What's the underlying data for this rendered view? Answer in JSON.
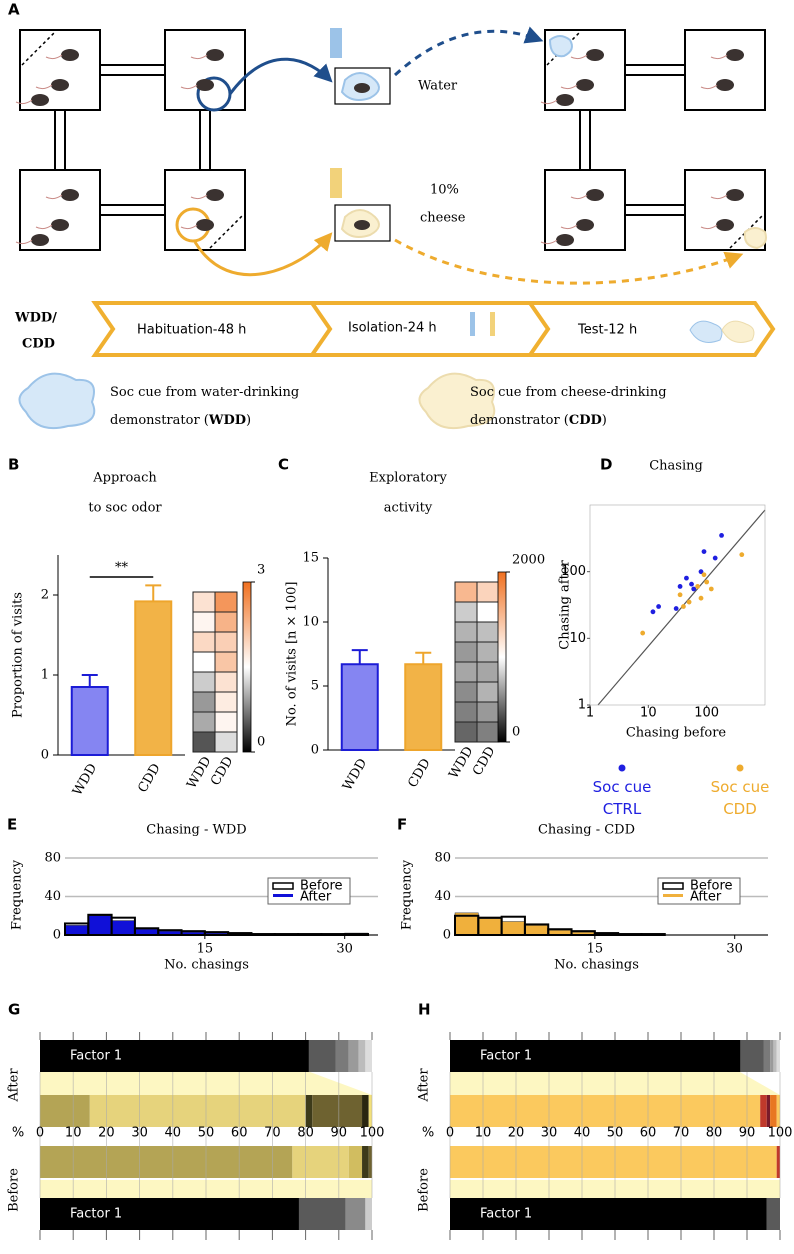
{
  "diagram": {
    "panel": "A",
    "water": "Water",
    "cheese_lines": [
      "10%",
      "cheese"
    ],
    "timeline": {
      "group_lines": [
        "WDD/",
        "CDD"
      ],
      "stages": [
        "Habituation-48 h",
        "Isolation-24 h",
        "Test-12 h"
      ]
    },
    "legend": [
      {
        "lines": [
          [
            "Soc cue from water-drinking"
          ],
          [
            "demonstrator (",
            "WDD",
            ")"
          ]
        ]
      },
      {
        "lines": [
          [
            "Soc cue from cheese-drinking"
          ],
          [
            "demonstrator (",
            "CDD",
            ")"
          ]
        ]
      }
    ]
  },
  "chart_data": [
    {
      "type": "bar",
      "panel": "B",
      "title_lines": [
        "Approach",
        "to soc odor"
      ],
      "ylabel": "Proportion of visits",
      "categories": [
        "WDD",
        "CDD"
      ],
      "values": [
        0.85,
        1.92
      ],
      "errors": [
        0.15,
        0.2
      ],
      "colors": [
        "#8585f2",
        "#f2b347"
      ],
      "edgecolors": [
        "#1c1cd6",
        "#eea52c"
      ],
      "ylim": [
        0,
        2.5
      ],
      "yticks": [
        0,
        1,
        2
      ],
      "annotation": "**",
      "heatmap": {
        "categories": [
          "WDD",
          "CDD"
        ],
        "values": [
          [
            1.8,
            1.6,
            1.9,
            1.5,
            1.2,
            0.9,
            1.0,
            0.5
          ],
          [
            2.6,
            2.3,
            2.0,
            2.1,
            1.8,
            1.7,
            1.6,
            1.3
          ]
        ],
        "clim": [
          0,
          3
        ],
        "cticks": [
          0,
          3
        ]
      }
    },
    {
      "type": "bar",
      "panel": "C",
      "title_lines": [
        "Exploratory",
        "activity"
      ],
      "ylabel": "No. of visits [n × 100]",
      "categories": [
        "WDD",
        "CDD"
      ],
      "values": [
        6.7,
        6.7
      ],
      "errors": [
        1.1,
        0.9
      ],
      "colors": [
        "#8585f2",
        "#f2b347"
      ],
      "edgecolors": [
        "#1c1cd6",
        "#eea52c"
      ],
      "ylim": [
        0,
        15
      ],
      "yticks": [
        0,
        5,
        10,
        15
      ],
      "heatmap": {
        "categories": [
          "WDD",
          "CDD"
        ],
        "values": [
          [
            1500,
            800,
            700,
            600,
            650,
            550,
            500,
            400
          ],
          [
            1300,
            1000,
            750,
            700,
            650,
            700,
            600,
            500
          ]
        ],
        "clim": [
          0,
          2000
        ],
        "cticks": [
          0,
          2000
        ]
      }
    },
    {
      "type": "scatter",
      "panel": "D",
      "title": "Chasing",
      "xlabel": "Chasing before",
      "ylabel": "Chasing after",
      "log_scale": true,
      "xlim": [
        1,
        1000
      ],
      "ylim": [
        1,
        1000
      ],
      "xticks": [
        1,
        10,
        100
      ],
      "yticks": [
        1,
        10,
        100
      ],
      "series": [
        {
          "name": "Soc cue CTRL",
          "color": "#1f1fe0",
          "x": [
            12,
            15,
            30,
            35,
            45,
            55,
            60,
            80,
            90,
            140,
            180
          ],
          "y": [
            25,
            30,
            28,
            60,
            80,
            65,
            55,
            100,
            200,
            160,
            350
          ]
        },
        {
          "name": "Soc cue CDD",
          "color": "#eeab2e",
          "x": [
            8,
            35,
            40,
            50,
            70,
            80,
            90,
            100,
            120,
            400
          ],
          "y": [
            12,
            45,
            30,
            35,
            60,
            40,
            90,
            70,
            55,
            180
          ]
        }
      ]
    },
    {
      "type": "histogram",
      "panel": "E",
      "title": "Chasing - WDD",
      "xlabel": "No. chasings",
      "ylabel": "Frequency",
      "bins": [
        0,
        2.5,
        5,
        7.5,
        10,
        12.5,
        15,
        17.5,
        20,
        22.5,
        25,
        27.5,
        30,
        32.5
      ],
      "xlim": [
        0,
        32.5
      ],
      "ylim": [
        0,
        80
      ],
      "xticks": [
        15,
        30
      ],
      "yticks": [
        0,
        40,
        80
      ],
      "grid": true,
      "series": [
        {
          "name": "Before",
          "color": "#000000",
          "values": [
            12,
            21,
            18,
            7,
            5,
            4,
            3,
            2,
            1,
            1,
            1,
            1,
            1
          ]
        },
        {
          "name": "After",
          "color": "#1010d8",
          "values": [
            10,
            20,
            15,
            6,
            4,
            3,
            2,
            2,
            1,
            1,
            1,
            1,
            2
          ]
        }
      ]
    },
    {
      "type": "histogram",
      "panel": "F",
      "title": "Chasing - CDD",
      "xlabel": "No. chasings",
      "ylabel": "Frequency",
      "bins": [
        0,
        2.5,
        5,
        7.5,
        10,
        12.5,
        15,
        17.5,
        20,
        22.5,
        25,
        27.5,
        30,
        32.5
      ],
      "xlim": [
        0,
        32.5
      ],
      "ylim": [
        0,
        80
      ],
      "xticks": [
        15,
        30
      ],
      "yticks": [
        0,
        40,
        80
      ],
      "grid": true,
      "series": [
        {
          "name": "Before",
          "color": "#000000",
          "values": [
            20,
            18,
            19,
            11,
            6,
            4,
            2,
            1,
            1,
            0,
            0,
            0,
            0
          ]
        },
        {
          "name": "After",
          "color": "#f0b03c",
          "values": [
            23,
            17,
            14,
            10,
            5,
            3,
            2,
            1,
            0,
            0,
            0,
            0,
            0
          ]
        }
      ]
    },
    {
      "type": "stacked_bar",
      "panel": "G",
      "xlabel": "%",
      "xlim": [
        0,
        100
      ],
      "xticks": [
        0,
        10,
        20,
        30,
        40,
        50,
        60,
        70,
        80,
        90,
        100
      ],
      "groups": [
        "After",
        "Before"
      ],
      "rows": [
        {
          "text": "Factor 1",
          "values": [
            81,
            8,
            4,
            3,
            2,
            2
          ],
          "colors": [
            "#000000",
            "#5a5a5a",
            "#7a7a7a",
            "#9a9a9a",
            "#bcbcbc",
            "#dddddd"
          ]
        },
        {
          "values": [
            15,
            65,
            2,
            15,
            2,
            1
          ],
          "colors": [
            "#b4a455",
            "#e6d37c",
            "#3d3a1a",
            "#6e6230",
            "#2a2610",
            "#f2e07a"
          ]
        },
        {
          "values": [
            76,
            17,
            4,
            2,
            1
          ],
          "colors": [
            "#b4a455",
            "#e6d37c",
            "#d1bd60",
            "#3d3a1a",
            "#6e6230"
          ]
        },
        {
          "text": "Factor 1",
          "values": [
            78,
            14,
            6,
            2
          ],
          "colors": [
            "#000000",
            "#5a5a5a",
            "#8a8a8a",
            "#cccccc"
          ]
        }
      ]
    },
    {
      "type": "stacked_bar",
      "panel": "H",
      "xlabel": "%",
      "xlim": [
        0,
        100
      ],
      "xticks": [
        0,
        10,
        20,
        30,
        40,
        50,
        60,
        70,
        80,
        90,
        100
      ],
      "groups": [
        "After",
        "Before"
      ],
      "rows": [
        {
          "text": "Factor 1",
          "values": [
            88,
            7,
            2,
            1,
            1,
            1
          ],
          "colors": [
            "#000000",
            "#5a5a5a",
            "#7a7a7a",
            "#9a9a9a",
            "#bcbcbc",
            "#dddddd"
          ]
        },
        {
          "values": [
            94,
            2,
            1,
            2,
            1
          ],
          "colors": [
            "#fbc95e",
            "#c0392b",
            "#7a1a2a",
            "#e87722",
            "#fbc95e"
          ]
        },
        {
          "values": [
            99,
            1
          ],
          "colors": [
            "#fbc95e",
            "#c0392b"
          ]
        },
        {
          "text": "Factor 1",
          "values": [
            96,
            4
          ],
          "colors": [
            "#000000",
            "#5a5a5a"
          ]
        }
      ]
    }
  ]
}
